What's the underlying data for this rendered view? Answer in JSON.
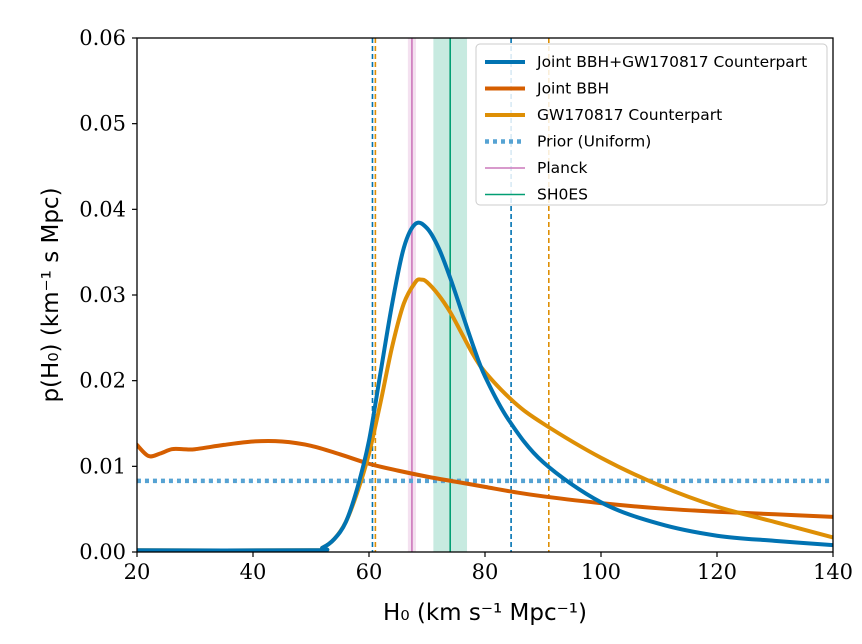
{
  "chart_data": {
    "type": "line",
    "xlabel": "H₀ (km s⁻¹ Mpc⁻¹)",
    "ylabel": "p(H₀) (km⁻¹ s Mpc)",
    "xlim": [
      20,
      140
    ],
    "ylim": [
      0,
      0.06
    ],
    "xticks": [
      "20",
      "40",
      "60",
      "80",
      "100",
      "120",
      "140"
    ],
    "yticks": [
      "0.00",
      "0.01",
      "0.02",
      "0.03",
      "0.04",
      "0.05",
      "0.06"
    ],
    "grid": false,
    "legend_position": "top-right",
    "series": [
      {
        "name": "Joint BBH+GW170817 Counterpart",
        "color": "#0173b2",
        "style": "solid-thick",
        "x": [
          20,
          50,
          52,
          54,
          56,
          58,
          60,
          62,
          64,
          66,
          68,
          70,
          72,
          74,
          76,
          78,
          80,
          84,
          90,
          100,
          110,
          120,
          130,
          140
        ],
        "y": [
          0.0002,
          0.0002,
          0.0005,
          0.0015,
          0.0035,
          0.0075,
          0.013,
          0.021,
          0.029,
          0.0355,
          0.0383,
          0.0378,
          0.0355,
          0.032,
          0.028,
          0.024,
          0.0205,
          0.0155,
          0.0105,
          0.0058,
          0.0033,
          0.0019,
          0.0013,
          0.0008
        ]
      },
      {
        "name": "Joint BBH",
        "color": "#d55e00",
        "style": "solid-thick",
        "x": [
          20,
          22,
          24,
          26,
          28,
          30,
          35,
          40,
          45,
          50,
          55,
          60,
          65,
          70,
          75,
          80,
          85,
          90,
          100,
          110,
          120,
          130,
          140
        ],
        "y": [
          0.0125,
          0.0112,
          0.0115,
          0.012,
          0.012,
          0.012,
          0.0125,
          0.0129,
          0.0129,
          0.0124,
          0.0114,
          0.0103,
          0.0095,
          0.0088,
          0.0082,
          0.0076,
          0.007,
          0.0065,
          0.0057,
          0.0051,
          0.0047,
          0.0044,
          0.0041
        ]
      },
      {
        "name": "GW170817 Counterpart",
        "color": "#de8f05",
        "style": "solid-thick",
        "x": [
          20,
          50,
          52,
          54,
          56,
          58,
          60,
          62,
          64,
          66,
          68,
          69,
          70,
          72,
          74,
          76,
          78,
          80,
          85,
          90,
          100,
          110,
          120,
          130,
          140
        ],
        "y": [
          0.0002,
          0.0002,
          0.0005,
          0.0015,
          0.0035,
          0.007,
          0.0115,
          0.0175,
          0.024,
          0.029,
          0.0315,
          0.0318,
          0.0315,
          0.03,
          0.028,
          0.0255,
          0.023,
          0.021,
          0.0175,
          0.015,
          0.011,
          0.0078,
          0.0053,
          0.0035,
          0.0017
        ]
      },
      {
        "name": "Prior (Uniform)",
        "color": "#56a3d3",
        "style": "dotted",
        "x": [
          20,
          140
        ],
        "y": [
          0.0083,
          0.0083
        ]
      }
    ],
    "bands": [
      {
        "name": "Planck",
        "color": "#cc78bc",
        "center": 67.4,
        "low": 66.7,
        "high": 68.1
      },
      {
        "name": "SH0ES",
        "color": "#029e73",
        "center": 74.0,
        "low": 71.1,
        "high": 76.9
      }
    ],
    "vlines": [
      {
        "x": 60.6,
        "color": "#0173b2"
      },
      {
        "x": 84.5,
        "color": "#0173b2"
      },
      {
        "x": 61.1,
        "color": "#de8f05"
      },
      {
        "x": 91.0,
        "color": "#de8f05"
      }
    ],
    "legend": [
      {
        "label": "Joint BBH+GW170817 Counterpart",
        "color": "#0173b2",
        "style": "thick"
      },
      {
        "label": "Joint BBH",
        "color": "#d55e00",
        "style": "thick"
      },
      {
        "label": "GW170817 Counterpart",
        "color": "#de8f05",
        "style": "thick"
      },
      {
        "label": "Prior (Uniform)",
        "color": "#56a3d3",
        "style": "dotted"
      },
      {
        "label": "Planck",
        "color": "#cc78bc",
        "style": "thin"
      },
      {
        "label": "SH0ES",
        "color": "#029e73",
        "style": "thin"
      }
    ]
  }
}
